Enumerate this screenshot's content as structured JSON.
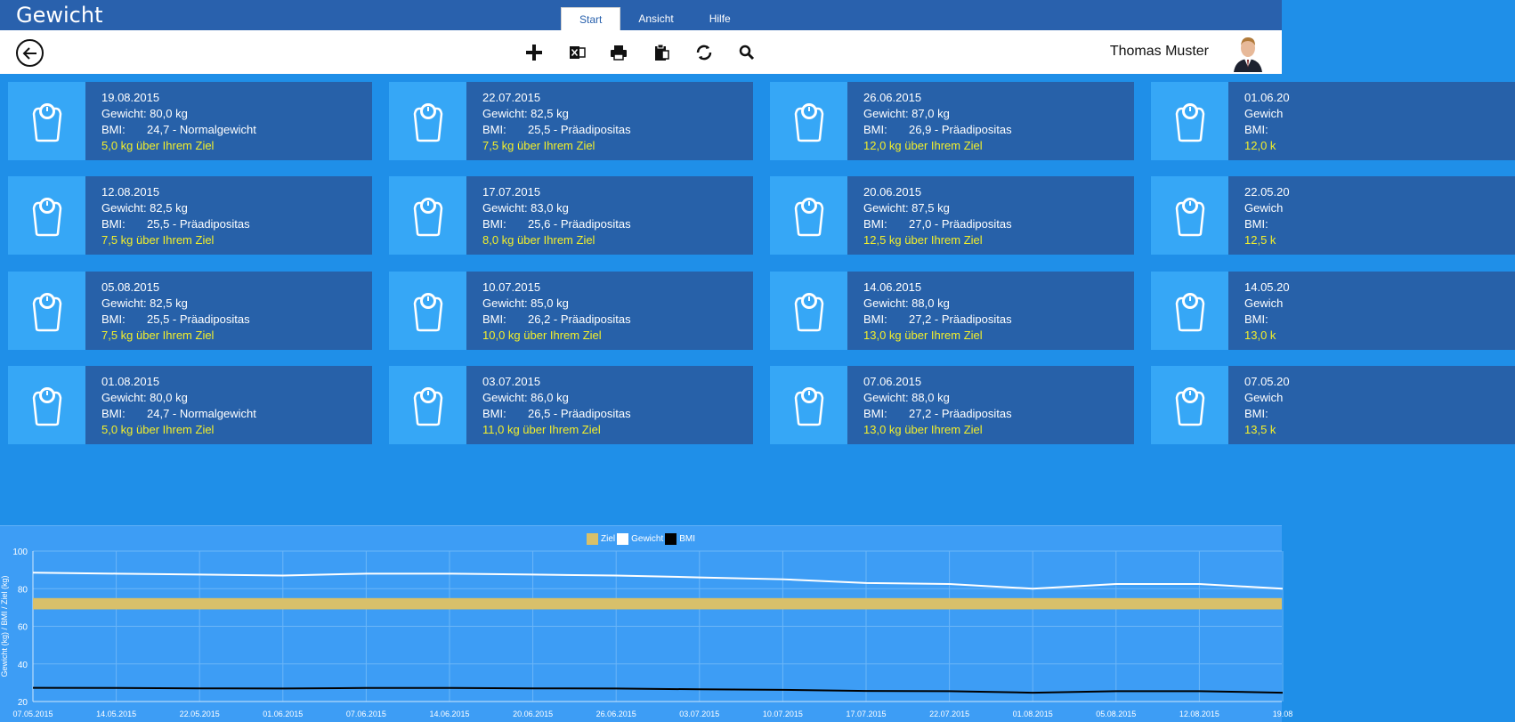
{
  "app": {
    "title": "Gewicht"
  },
  "tabs": [
    {
      "label": "Start",
      "active": true
    },
    {
      "label": "Ansicht",
      "active": false
    },
    {
      "label": "Hilfe",
      "active": false
    }
  ],
  "toolbar": {
    "icons": [
      "back-arrow-icon",
      "add-icon",
      "excel-export-icon",
      "print-icon",
      "clipboard-icon",
      "sync-icon",
      "search-icon"
    ]
  },
  "user": {
    "name": "Thomas Muster"
  },
  "entries": [
    {
      "date": "19.08.2015",
      "weight": "Gewicht: 80,0 kg",
      "bmi_label": "BMI:",
      "bmi": "24,7 - Normalgewicht",
      "goal": "5,0 kg über Ihrem Ziel"
    },
    {
      "date": "12.08.2015",
      "weight": "Gewicht: 82,5 kg",
      "bmi_label": "BMI:",
      "bmi": "25,5 - Präadipositas",
      "goal": "7,5 kg über Ihrem Ziel"
    },
    {
      "date": "05.08.2015",
      "weight": "Gewicht: 82,5 kg",
      "bmi_label": "BMI:",
      "bmi": "25,5 - Präadipositas",
      "goal": "7,5 kg über Ihrem Ziel"
    },
    {
      "date": "01.08.2015",
      "weight": "Gewicht: 80,0 kg",
      "bmi_label": "BMI:",
      "bmi": "24,7 - Normalgewicht",
      "goal": "5,0 kg über Ihrem Ziel"
    },
    {
      "date": "22.07.2015",
      "weight": "Gewicht: 82,5 kg",
      "bmi_label": "BMI:",
      "bmi": "25,5 - Präadipositas",
      "goal": "7,5 kg über Ihrem Ziel"
    },
    {
      "date": "17.07.2015",
      "weight": "Gewicht: 83,0 kg",
      "bmi_label": "BMI:",
      "bmi": "25,6 - Präadipositas",
      "goal": "8,0 kg über Ihrem Ziel"
    },
    {
      "date": "10.07.2015",
      "weight": "Gewicht: 85,0 kg",
      "bmi_label": "BMI:",
      "bmi": "26,2 - Präadipositas",
      "goal": "10,0 kg über Ihrem Ziel"
    },
    {
      "date": "03.07.2015",
      "weight": "Gewicht: 86,0 kg",
      "bmi_label": "BMI:",
      "bmi": "26,5 - Präadipositas",
      "goal": "11,0 kg über Ihrem Ziel"
    },
    {
      "date": "26.06.2015",
      "weight": "Gewicht: 87,0 kg",
      "bmi_label": "BMI:",
      "bmi": "26,9 - Präadipositas",
      "goal": "12,0 kg über Ihrem Ziel"
    },
    {
      "date": "20.06.2015",
      "weight": "Gewicht: 87,5 kg",
      "bmi_label": "BMI:",
      "bmi": "27,0 - Präadipositas",
      "goal": "12,5 kg über Ihrem Ziel"
    },
    {
      "date": "14.06.2015",
      "weight": "Gewicht: 88,0 kg",
      "bmi_label": "BMI:",
      "bmi": "27,2 - Präadipositas",
      "goal": "13,0 kg über Ihrem Ziel"
    },
    {
      "date": "07.06.2015",
      "weight": "Gewicht: 88,0 kg",
      "bmi_label": "BMI:",
      "bmi": "27,2 - Präadipositas",
      "goal": "13,0 kg über Ihrem Ziel"
    },
    {
      "date": "01.06.20",
      "weight": "Gewich",
      "bmi_label": "BMI:",
      "bmi": "",
      "goal": "12,0 k"
    },
    {
      "date": "22.05.20",
      "weight": "Gewich",
      "bmi_label": "BMI:",
      "bmi": "",
      "goal": "12,5 k"
    },
    {
      "date": "14.05.20",
      "weight": "Gewich",
      "bmi_label": "BMI:",
      "bmi": "",
      "goal": "13,0 k"
    },
    {
      "date": "07.05.20",
      "weight": "Gewich",
      "bmi_label": "BMI:",
      "bmi": "",
      "goal": "13,5 k"
    }
  ],
  "colors": {
    "goal_text": "#f3ef2a",
    "tile_body": "#2761a9",
    "tile_icon": "#36a7f6",
    "header": "#2961ad"
  },
  "chart_data": {
    "type": "line",
    "legend": [
      "Ziel",
      "Gewicht",
      "BMI"
    ],
    "legend_placement": "top-center",
    "ylabel": "Gewicht (kg) / BMI / Ziel (kg)",
    "ylim": [
      20,
      100
    ],
    "yticks": [
      "100",
      "80",
      "60",
      "40",
      "20"
    ],
    "x_tick_labels": [
      "07.05.2015",
      "14.05.2015",
      "22.05.2015",
      "01.06.2015",
      "07.06.2015",
      "14.06.2015",
      "20.06.2015",
      "26.06.2015",
      "03.07.2015",
      "10.07.2015",
      "17.07.2015",
      "22.07.2015",
      "01.08.2015",
      "05.08.2015",
      "12.08.2015",
      "19.08"
    ],
    "grid": true,
    "series": [
      {
        "name": "Ziel",
        "color": "#d8c06a",
        "band": [
          69,
          75
        ]
      },
      {
        "name": "Gewicht",
        "color": "#ffffff",
        "values": [
          88.5,
          88,
          87.5,
          87,
          88,
          88,
          87.5,
          87,
          86,
          85,
          83,
          82.5,
          80,
          82.5,
          82.5,
          80
        ]
      },
      {
        "name": "BMI",
        "color": "#000000",
        "values": [
          27.3,
          27.2,
          27.0,
          26.9,
          27.2,
          27.2,
          27.0,
          26.9,
          26.5,
          26.2,
          25.6,
          25.5,
          24.7,
          25.5,
          25.5,
          24.7
        ]
      }
    ]
  }
}
